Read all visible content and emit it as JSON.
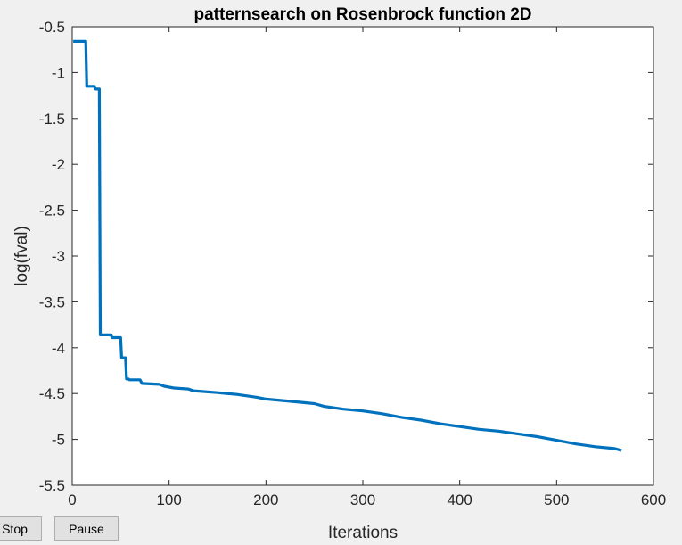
{
  "chart_data": {
    "type": "line",
    "title": "patternsearch on Rosenbrock function 2D",
    "xlabel": "Iterations",
    "ylabel": "log(fval)",
    "xlim": [
      0,
      600
    ],
    "ylim": [
      -5.5,
      -0.5
    ],
    "xticks": [
      0,
      100,
      200,
      300,
      400,
      500,
      600
    ],
    "yticks": [
      -5.5,
      -5,
      -4.5,
      -4,
      -3.5,
      -3,
      -2.5,
      -2,
      -1.5,
      -1,
      -0.5
    ],
    "xtick_labels": [
      "0",
      "100",
      "200",
      "300",
      "400",
      "500",
      "600"
    ],
    "ytick_labels": [
      "-5.5",
      "-5",
      "-4.5",
      "-4",
      "-3.5",
      "-3",
      "-2.5",
      "-2",
      "-1.5",
      "-1",
      "-0.5"
    ],
    "grid": false,
    "line_color": "#0072bd",
    "series": [
      {
        "x": [
          1,
          14,
          15,
          23,
          24,
          28,
          29,
          40,
          41,
          50,
          51,
          55,
          56,
          58,
          59,
          70,
          72,
          90,
          95,
          100,
          105,
          120,
          125,
          150,
          170,
          190,
          200,
          220,
          250,
          260,
          280,
          300,
          320,
          340,
          360,
          380,
          400,
          420,
          440,
          460,
          480,
          500,
          520,
          540,
          560,
          567
        ],
        "y": [
          -0.66,
          -0.66,
          -1.15,
          -1.15,
          -1.18,
          -1.18,
          -3.86,
          -3.86,
          -3.89,
          -3.89,
          -4.11,
          -4.11,
          -4.34,
          -4.34,
          -4.35,
          -4.35,
          -4.39,
          -4.4,
          -4.42,
          -4.43,
          -4.44,
          -4.45,
          -4.47,
          -4.49,
          -4.51,
          -4.54,
          -4.56,
          -4.58,
          -4.61,
          -4.64,
          -4.67,
          -4.69,
          -4.72,
          -4.76,
          -4.79,
          -4.83,
          -4.86,
          -4.89,
          -4.91,
          -4.94,
          -4.97,
          -5.01,
          -5.05,
          -5.08,
          -5.1,
          -5.12
        ]
      }
    ]
  },
  "controls": {
    "stop_label": "Stop",
    "pause_label": "Pause"
  }
}
